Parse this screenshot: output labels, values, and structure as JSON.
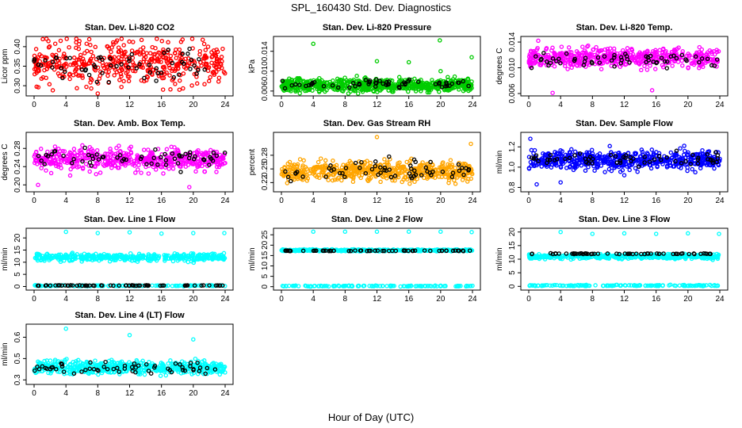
{
  "figure": {
    "title": "SPL_160430  Std. Dev. Diagnostics",
    "xlabel": "Hour of Day (UTC)"
  },
  "chart_data": [
    {
      "type": "scatter",
      "title": "Stan. Dev. Li-820 CO2",
      "ylabel": "Licor ppm",
      "xlim": [
        0,
        24
      ],
      "ylim": [
        0.28,
        0.42
      ],
      "xticks": [
        0,
        4,
        8,
        12,
        16,
        20,
        24
      ],
      "yticks": [
        0.3,
        0.35,
        0.4
      ],
      "series": [
        {
          "color": "#ff0000",
          "center": 0.36,
          "spread": 0.055,
          "n": 460
        },
        {
          "color": "#000000",
          "center": 0.355,
          "spread": 0.04,
          "n": 60
        }
      ],
      "outliers": [
        [
          4.1,
          0.42
        ],
        [
          8.0,
          0.28
        ],
        [
          16.2,
          0.29
        ]
      ]
    },
    {
      "type": "scatter",
      "title": "Stan. Dev. Li-820 Pressure",
      "ylabel": "kPa",
      "xlim": [
        0,
        24
      ],
      "ylim": [
        0.0055,
        0.0165
      ],
      "xticks": [
        0,
        4,
        8,
        12,
        16,
        20,
        24
      ],
      "yticks": [
        0.006,
        0.01,
        0.014
      ],
      "series": [
        {
          "color": "#00cc00",
          "center": 0.0072,
          "spread": 0.0012,
          "n": 700
        },
        {
          "color": "#000000",
          "center": 0.0075,
          "spread": 0.0008,
          "n": 60
        }
      ],
      "outliers": [
        [
          4.0,
          0.0155
        ],
        [
          12.0,
          0.012
        ],
        [
          16.0,
          0.0118
        ],
        [
          19.9,
          0.0162
        ],
        [
          23.9,
          0.0128
        ],
        [
          20.0,
          0.01
        ]
      ]
    },
    {
      "type": "scatter",
      "title": "Stan. Dev. Li-820 Temp.",
      "ylabel": "degrees C",
      "xlim": [
        0,
        24
      ],
      "ylim": [
        0.006,
        0.0145
      ],
      "xticks": [
        0,
        4,
        8,
        12,
        16,
        20,
        24
      ],
      "yticks": [
        0.006,
        0.01,
        0.014
      ],
      "series": [
        {
          "color": "#ff00ff",
          "center": 0.0115,
          "spread": 0.0014,
          "n": 520
        },
        {
          "color": "#000000",
          "center": 0.0112,
          "spread": 0.001,
          "n": 60
        }
      ],
      "outliers": [
        [
          1.2,
          0.0142
        ],
        [
          3.0,
          0.0061
        ],
        [
          15.5,
          0.0065
        ]
      ]
    },
    {
      "type": "scatter",
      "title": "Stan. Dev. Amb. Box Temp.",
      "ylabel": "degrees C",
      "xlim": [
        0,
        24
      ],
      "ylim": [
        0.19,
        0.31
      ],
      "xticks": [
        0,
        4,
        8,
        12,
        16,
        20,
        24
      ],
      "yticks": [
        0.2,
        0.24,
        0.28
      ],
      "series": [
        {
          "color": "#ff00ff",
          "center": 0.255,
          "spread": 0.022,
          "n": 520
        },
        {
          "color": "#000000",
          "center": 0.258,
          "spread": 0.02,
          "n": 60
        }
      ],
      "outliers": [
        [
          19.5,
          0.195
        ],
        [
          0.5,
          0.2
        ]
      ]
    },
    {
      "type": "scatter",
      "title": "Stan. Dev. Gas Stream RH",
      "ylabel": "percent",
      "xlim": [
        0,
        24
      ],
      "ylim": [
        0.205,
        0.325
      ],
      "xticks": [
        0,
        4,
        8,
        12,
        16,
        20,
        24
      ],
      "yticks": [
        0.22,
        0.25,
        0.28
      ],
      "series": [
        {
          "color": "#ffa500",
          "center": 0.245,
          "spread": 0.02,
          "n": 560
        },
        {
          "color": "#000000",
          "center": 0.245,
          "spread": 0.02,
          "n": 60
        }
      ],
      "outliers": [
        [
          12.0,
          0.32
        ],
        [
          23.8,
          0.305
        ]
      ]
    },
    {
      "type": "scatter",
      "title": "Stan. Dev. Sample Flow",
      "ylabel": "ml/min",
      "xlim": [
        0,
        24
      ],
      "ylim": [
        0.78,
        1.32
      ],
      "xticks": [
        0,
        4,
        8,
        12,
        16,
        20,
        24
      ],
      "yticks": [
        0.8,
        1.0,
        1.2
      ],
      "series": [
        {
          "color": "#0000ff",
          "center": 1.07,
          "spread": 0.09,
          "n": 560
        },
        {
          "color": "#000000",
          "center": 1.08,
          "spread": 0.06,
          "n": 60
        }
      ],
      "outliers": [
        [
          0.2,
          1.28
        ],
        [
          1.0,
          0.83
        ],
        [
          4.0,
          0.85
        ],
        [
          12.0,
          0.92
        ]
      ]
    },
    {
      "type": "scatter",
      "title": "Stan. Dev. Line 1 Flow",
      "ylabel": "ml/min",
      "xlim": [
        0,
        24
      ],
      "ylim": [
        -0.5,
        23
      ],
      "xticks": [
        0,
        4,
        8,
        12,
        16,
        20,
        24
      ],
      "yticks": [
        0,
        5,
        10,
        15,
        20
      ],
      "series": [
        {
          "color": "#00ffff",
          "center": 12.0,
          "spread": 1.4,
          "n": 420
        },
        {
          "color": "#00ffff",
          "center": 0.3,
          "spread": 0.2,
          "n": 140
        },
        {
          "color": "#000000",
          "center": 0.4,
          "spread": 0.1,
          "n": 60
        }
      ],
      "outliers": [
        [
          4.0,
          22.5
        ],
        [
          8.0,
          22.0
        ],
        [
          12.0,
          22.3
        ],
        [
          16.0,
          21.8
        ],
        [
          20.0,
          22.0
        ],
        [
          23.9,
          22.0
        ]
      ]
    },
    {
      "type": "scatter",
      "title": "Stan. Dev. Line 2 Flow",
      "ylabel": "ml/min",
      "xlim": [
        0,
        24
      ],
      "ylim": [
        -0.5,
        27
      ],
      "xticks": [
        0,
        4,
        8,
        12,
        16,
        20,
        24
      ],
      "yticks": [
        0,
        5,
        10,
        15,
        20,
        25
      ],
      "series": [
        {
          "color": "#00ffff",
          "center": 17.5,
          "spread": 0.4,
          "n": 420
        },
        {
          "color": "#00ffff",
          "center": 0.3,
          "spread": 0.2,
          "n": 140
        },
        {
          "color": "#000000",
          "center": 17.3,
          "spread": 0.15,
          "n": 60
        }
      ],
      "outliers": [
        [
          4.0,
          26.5
        ],
        [
          8.0,
          26.5
        ],
        [
          12.0,
          26.5
        ],
        [
          16.0,
          26.5
        ],
        [
          20.0,
          26.5
        ],
        [
          23.9,
          26.3
        ]
      ]
    },
    {
      "type": "scatter",
      "title": "Stan. Dev. Line 3 Flow",
      "ylabel": "ml/min",
      "xlim": [
        0,
        24
      ],
      "ylim": [
        -0.5,
        20.5
      ],
      "xticks": [
        0,
        4,
        8,
        12,
        16,
        20,
        24
      ],
      "yticks": [
        0,
        5,
        10,
        15,
        20
      ],
      "series": [
        {
          "color": "#00ffff",
          "center": 11.0,
          "spread": 0.8,
          "n": 420
        },
        {
          "color": "#00ffff",
          "center": 0.3,
          "spread": 0.2,
          "n": 140
        },
        {
          "color": "#000000",
          "center": 12.0,
          "spread": 0.15,
          "n": 60
        }
      ],
      "outliers": [
        [
          4.0,
          20.0
        ],
        [
          8.0,
          19.3
        ],
        [
          12.0,
          19.5
        ],
        [
          16.0,
          19.3
        ],
        [
          20.0,
          19.5
        ],
        [
          23.9,
          19.3
        ]
      ]
    },
    {
      "type": "scatter",
      "title": "Stan. Dev. Line 4 (LT) Flow",
      "ylabel": "ml/min",
      "xlim": [
        0,
        24
      ],
      "ylim": [
        0.34,
        0.6
      ],
      "xticks": [
        0,
        4,
        8,
        12,
        16,
        20,
        24
      ],
      "yticks": [
        0.35,
        0.45,
        0.55
      ],
      "series": [
        {
          "color": "#00ffff",
          "center": 0.41,
          "spread": 0.03,
          "n": 520
        },
        {
          "color": "#000000",
          "center": 0.405,
          "spread": 0.025,
          "n": 60
        }
      ],
      "outliers": [
        [
          4.0,
          0.59
        ],
        [
          12.0,
          0.56
        ],
        [
          20.0,
          0.54
        ]
      ]
    }
  ]
}
